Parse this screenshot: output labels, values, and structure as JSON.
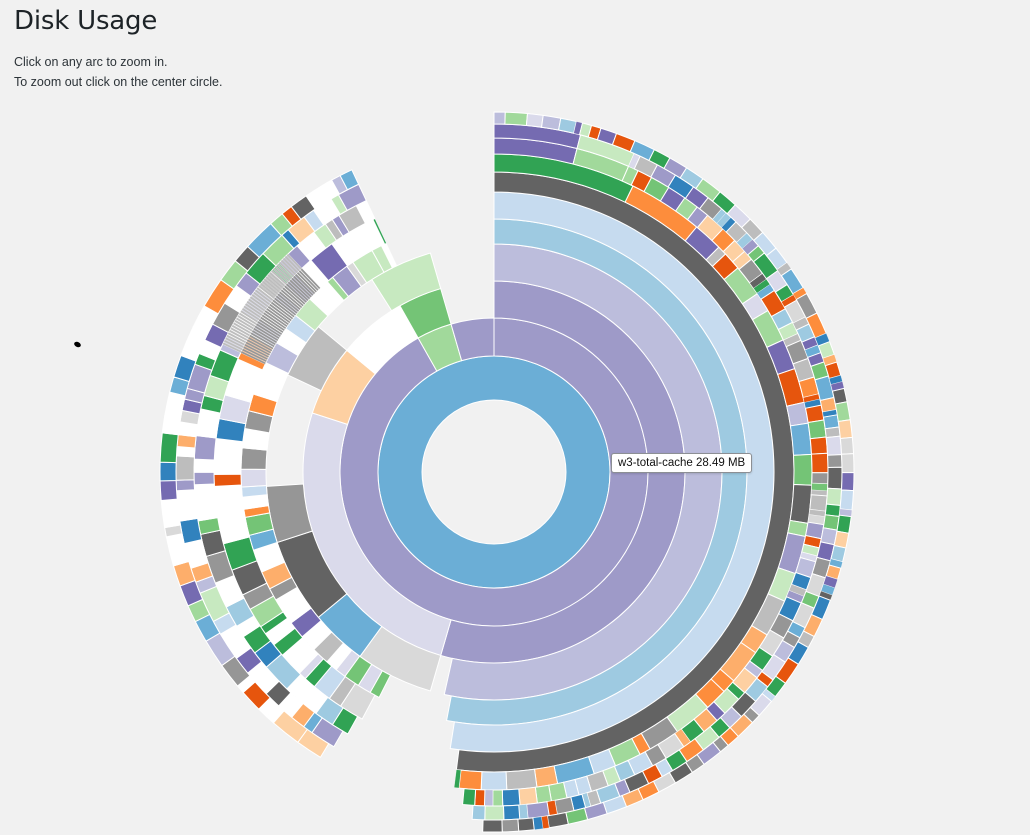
{
  "page": {
    "title": "Disk Usage",
    "help_line1": "Click on any arc to zoom in.",
    "help_line2": "To zoom out click on the center circle."
  },
  "tooltip": {
    "text": "w3-total-cache 28.49 MB"
  },
  "chart_data": {
    "type": "sunburst",
    "title": "Disk Usage",
    "hovered": {
      "name": "w3-total-cache",
      "size_label": "28.49 MB"
    },
    "unit": "fraction of parent",
    "rings": [
      {
        "depth": 1,
        "color": "#6baed6",
        "arcs": [
          {
            "start": 0.0,
            "end": 1.0
          }
        ]
      },
      {
        "depth": 2,
        "color": "#9e9ac8",
        "arcs": [
          {
            "start": 0.0,
            "end": 0.918
          },
          {
            "start": 0.918,
            "end": 0.955,
            "color": "#a1d99b"
          },
          {
            "start": 0.955,
            "end": 1.0
          }
        ]
      },
      {
        "depth": 3,
        "color": "#9e9ac8",
        "arcs": [
          {
            "start": 0.0,
            "end": 0.545
          }
        ]
      },
      {
        "depth": 4,
        "color": "#bcbddc",
        "arcs": [
          {
            "start": 0.0,
            "end": 0.535
          }
        ]
      },
      {
        "depth": 5,
        "color": "#9ecae1",
        "arcs": [
          {
            "start": 0.0,
            "end": 0.53
          }
        ]
      },
      {
        "depth": 6,
        "color": "#c6dbef",
        "arcs": [
          {
            "start": 0.0,
            "end": 0.525
          }
        ]
      },
      {
        "depth": 7,
        "color": "#636363",
        "arcs": [
          {
            "start": 0.0,
            "end": 0.52
          }
        ]
      }
    ],
    "palette": [
      "#3182bd",
      "#6baed6",
      "#9ecae1",
      "#c6dbef",
      "#e6550d",
      "#fd8d3c",
      "#fdae6b",
      "#fdd0a2",
      "#31a354",
      "#74c476",
      "#a1d99b",
      "#c7e9c0",
      "#756bb1",
      "#9e9ac8",
      "#bcbddc",
      "#dadaeb",
      "#636363",
      "#969696",
      "#bdbdbd",
      "#d9d9d9"
    ]
  }
}
